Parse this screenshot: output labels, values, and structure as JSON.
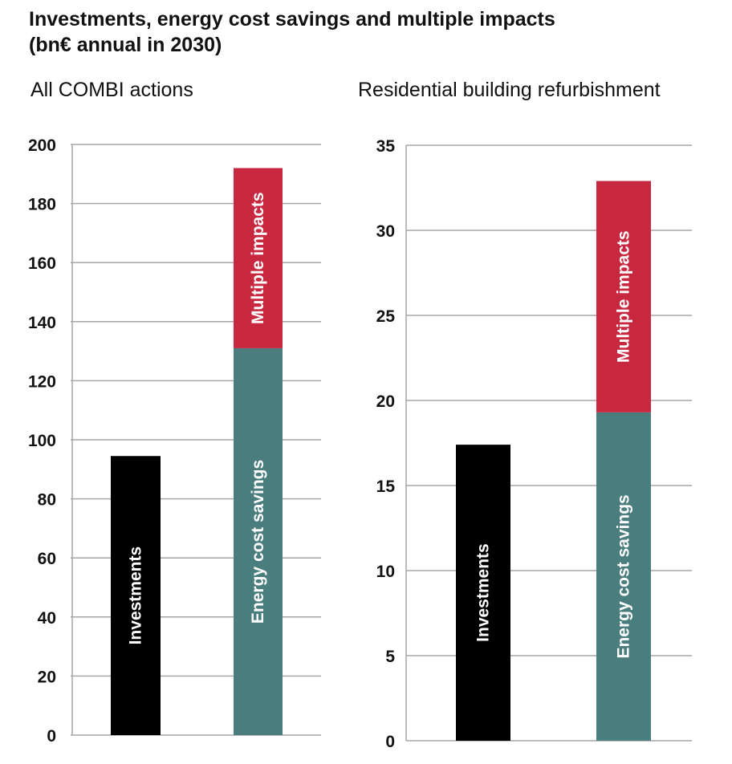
{
  "title_lines": [
    "Investments, energy cost savings and multiple impacts",
    "(bn€ annual in 2030)"
  ],
  "chart_data": [
    {
      "type": "bar",
      "stacked": true,
      "title": "All COMBI actions",
      "ylim": [
        0,
        200
      ],
      "yticks": [
        0,
        20,
        40,
        60,
        80,
        100,
        120,
        140,
        160,
        180,
        200
      ],
      "grid": true,
      "bars": [
        {
          "segments": [
            {
              "label": "Investments",
              "value": 94.5,
              "color": "#000000"
            }
          ]
        },
        {
          "segments": [
            {
              "label": "Energy cost savings",
              "value": 131,
              "color": "#4a7d7d"
            },
            {
              "label": "Multiple impacts",
              "value": 61,
              "color": "#c8283f"
            }
          ]
        }
      ]
    },
    {
      "type": "bar",
      "stacked": true,
      "title": "Residential building refurbishment",
      "ylim": [
        0,
        35
      ],
      "yticks": [
        0,
        5,
        10,
        15,
        20,
        25,
        30,
        35
      ],
      "grid": true,
      "bars": [
        {
          "segments": [
            {
              "label": "Investments",
              "value": 17.4,
              "color": "#000000"
            }
          ]
        },
        {
          "segments": [
            {
              "label": "Energy cost savings",
              "value": 19.3,
              "color": "#4a7d7d"
            },
            {
              "label": "Multiple impacts",
              "value": 13.6,
              "color": "#c8283f"
            }
          ]
        }
      ]
    }
  ]
}
